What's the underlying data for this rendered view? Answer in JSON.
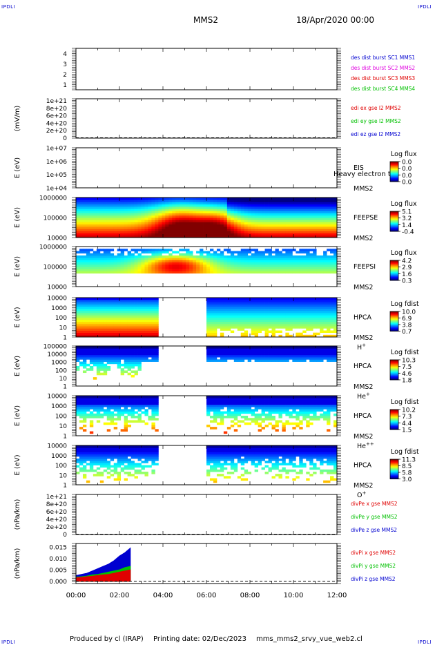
{
  "corner_labels": {
    "tl": "IPDLI",
    "tr": "IPDLI",
    "bl": "IPDLI",
    "br": "IPDLI"
  },
  "header": {
    "spacecraft": "MMS2",
    "datetime": "18/Apr/2020 00:00"
  },
  "footer": {
    "produced_by": "Produced by cl (IRAP)",
    "printing_date": "Printing date: 02/Dec/2023",
    "script": "mms_mms2_srvy_vue_web2.cl"
  },
  "time_axis": {
    "ticks": [
      "00:00",
      "02:00",
      "04:00",
      "06:00",
      "08:00",
      "10:00",
      "12:00"
    ],
    "hour_range": [
      0,
      12
    ]
  },
  "colors": {
    "red": "#e00000",
    "green": "#00c000",
    "blue": "#0000d0",
    "magenta": "#e000e0"
  },
  "chart_data": [
    {
      "type": "line",
      "panel": "des-dist",
      "ylim": [
        0.5,
        4.5
      ],
      "yticks": [
        "4",
        "3",
        "2",
        "1"
      ],
      "ytick_values": [
        4,
        3,
        2,
        1
      ],
      "ylabel": "",
      "legend": [
        {
          "text": "des dist burst SC1 MMS1",
          "color": "#0000d0"
        },
        {
          "text": "des dist burst SC2 MMS2",
          "color": "#e000e0"
        },
        {
          "text": "des dist burst SC3 MMS3",
          "color": "#e00000"
        },
        {
          "text": "des dist burst SC4 MMS4",
          "color": "#00c000"
        }
      ],
      "series": []
    },
    {
      "type": "line",
      "panel": "edi-e",
      "ylabel": "(mV/m)",
      "yticks": [
        "1e+21",
        "8e+20",
        "6e+20",
        "4e+20",
        "2e+20",
        "0"
      ],
      "ytick_values": [
        1e+21,
        8e+20,
        6e+20,
        4e+20,
        2e+20,
        0
      ],
      "ylim": [
        -1e+19,
        1.05e+21
      ],
      "zero_line": true,
      "legend": [
        {
          "text": "edi ex gse l2 MMS2",
          "color": "#e00000"
        },
        {
          "text": "edi ey gse l2 MMS2",
          "color": "#00c000"
        },
        {
          "text": "edi ez gse l2 MMS2",
          "color": "#0000d0"
        }
      ],
      "series": []
    },
    {
      "type": "heatmap",
      "panel": "eis",
      "ylabel": "E (eV)",
      "yticks": [
        "1e+07",
        "1e+06",
        "1e+05",
        "1e+04"
      ],
      "right_labels": [
        "EIS",
        "MMS2"
      ],
      "overlay_text": "Heavy electron to",
      "colorbar_title": "Log flux",
      "colorbar_ticks": [
        "0.0",
        "0.0",
        "0.0",
        "0.0"
      ]
    },
    {
      "type": "heatmap",
      "panel": "feepse",
      "ylabel": "E (eV)",
      "yticks": [
        "1000000",
        "100000",
        "10000"
      ],
      "right_labels": [
        "FEEPSE",
        "MMS2"
      ],
      "colorbar_title": "Log flux",
      "colorbar_ticks": [
        "5.1",
        "3.2",
        "1.4",
        "-0.4"
      ]
    },
    {
      "type": "heatmap",
      "panel": "feepsi",
      "ylabel": "E (eV)",
      "yticks": [
        "1000000",
        "100000",
        "10000"
      ],
      "right_labels": [
        "FEEPSI",
        "MMS2"
      ],
      "colorbar_title": "Log flux",
      "colorbar_ticks": [
        "4.2",
        "2.9",
        "1.6",
        "0.3"
      ]
    },
    {
      "type": "heatmap",
      "panel": "hpca-h",
      "ylabel": "E (eV)",
      "yticks": [
        "10000",
        "1000",
        "100",
        "10",
        "1"
      ],
      "right_labels": [
        "HPCA",
        "MMS2"
      ],
      "species": "H",
      "species_sup": "+",
      "colorbar_title": "Log fdist",
      "colorbar_ticks": [
        "10.0",
        "6.9",
        "3.8",
        "0.7"
      ]
    },
    {
      "type": "heatmap",
      "panel": "hpca-he",
      "ylabel": "E (eV)",
      "yticks": [
        "100000",
        "10000",
        "1000",
        "100",
        "10",
        "1"
      ],
      "right_labels": [
        "HPCA",
        "MMS2"
      ],
      "species": "He",
      "species_sup": "+",
      "colorbar_title": "Log fdist",
      "colorbar_ticks": [
        "10.3",
        "7.5",
        "4.6",
        "1.8"
      ]
    },
    {
      "type": "heatmap",
      "panel": "hpca-he2",
      "ylabel": "E (eV)",
      "yticks": [
        "10000",
        "1000",
        "100",
        "10",
        "1"
      ],
      "right_labels": [
        "HPCA",
        "MMS2"
      ],
      "species": "He",
      "species_sup": "++",
      "colorbar_title": "Log fdist",
      "colorbar_ticks": [
        "10.2",
        "7.3",
        "4.4",
        "1.5"
      ]
    },
    {
      "type": "heatmap",
      "panel": "hpca-o",
      "ylabel": "E (eV)",
      "yticks": [
        "10000",
        "1000",
        "100",
        "10",
        "1"
      ],
      "right_labels": [
        "HPCA",
        "MMS2"
      ],
      "species": "O",
      "species_sup": "+",
      "colorbar_title": "Log fdist",
      "colorbar_ticks": [
        "11.3",
        "8.5",
        "5.8",
        "3.0"
      ]
    },
    {
      "type": "line",
      "panel": "divpe",
      "ylabel": "(nPa/km)",
      "yticks": [
        "1e+21",
        "8e+20",
        "6e+20",
        "4e+20",
        "2e+20",
        "0"
      ],
      "ytick_values": [
        1e+21,
        8e+20,
        6e+20,
        4e+20,
        2e+20,
        0
      ],
      "ylim": [
        -1e+19,
        1.05e+21
      ],
      "zero_line": true,
      "legend": [
        {
          "text": "divPe x gse MMS2",
          "color": "#e00000"
        },
        {
          "text": "divPe y gse MMS2",
          "color": "#00c000"
        },
        {
          "text": "divPe z gse MMS2",
          "color": "#0000d0"
        }
      ],
      "series": []
    },
    {
      "type": "area",
      "panel": "divpi",
      "ylabel": "(nPa/km)",
      "yticks": [
        "0.015",
        "0.010",
        "0.005",
        "0.000"
      ],
      "ytick_values": [
        0.015,
        0.01,
        0.005,
        0.0
      ],
      "ylim": [
        -0.001,
        0.0165
      ],
      "zero_line": true,
      "legend": [
        {
          "text": "divPi x gse MMS2",
          "color": "#e00000"
        },
        {
          "text": "divPi y gse MMS2",
          "color": "#00c000"
        },
        {
          "text": "divPi z gse MMS2",
          "color": "#0000d0"
        }
      ],
      "x_hours": [
        0.0,
        0.25,
        0.5,
        0.75,
        1.0,
        1.25,
        1.5,
        1.75,
        2.0,
        2.25,
        2.5
      ],
      "series": [
        {
          "name": "divPi z gse MMS2",
          "color": "#0000d0",
          "values": [
            0.0025,
            0.003,
            0.0035,
            0.0045,
            0.0055,
            0.0065,
            0.0075,
            0.009,
            0.011,
            0.0125,
            0.0145
          ]
        },
        {
          "name": "divPi y gse MMS2",
          "color": "#00c000",
          "values": [
            0.0018,
            0.002,
            0.0023,
            0.0028,
            0.003,
            0.0035,
            0.004,
            0.0045,
            0.005,
            0.006,
            0.0065
          ]
        },
        {
          "name": "divPi x gse MMS2",
          "color": "#e00000",
          "values": [
            0.0015,
            0.0017,
            0.002,
            0.0022,
            0.0025,
            0.0028,
            0.003,
            0.0035,
            0.004,
            0.0045,
            0.005
          ]
        }
      ]
    }
  ]
}
